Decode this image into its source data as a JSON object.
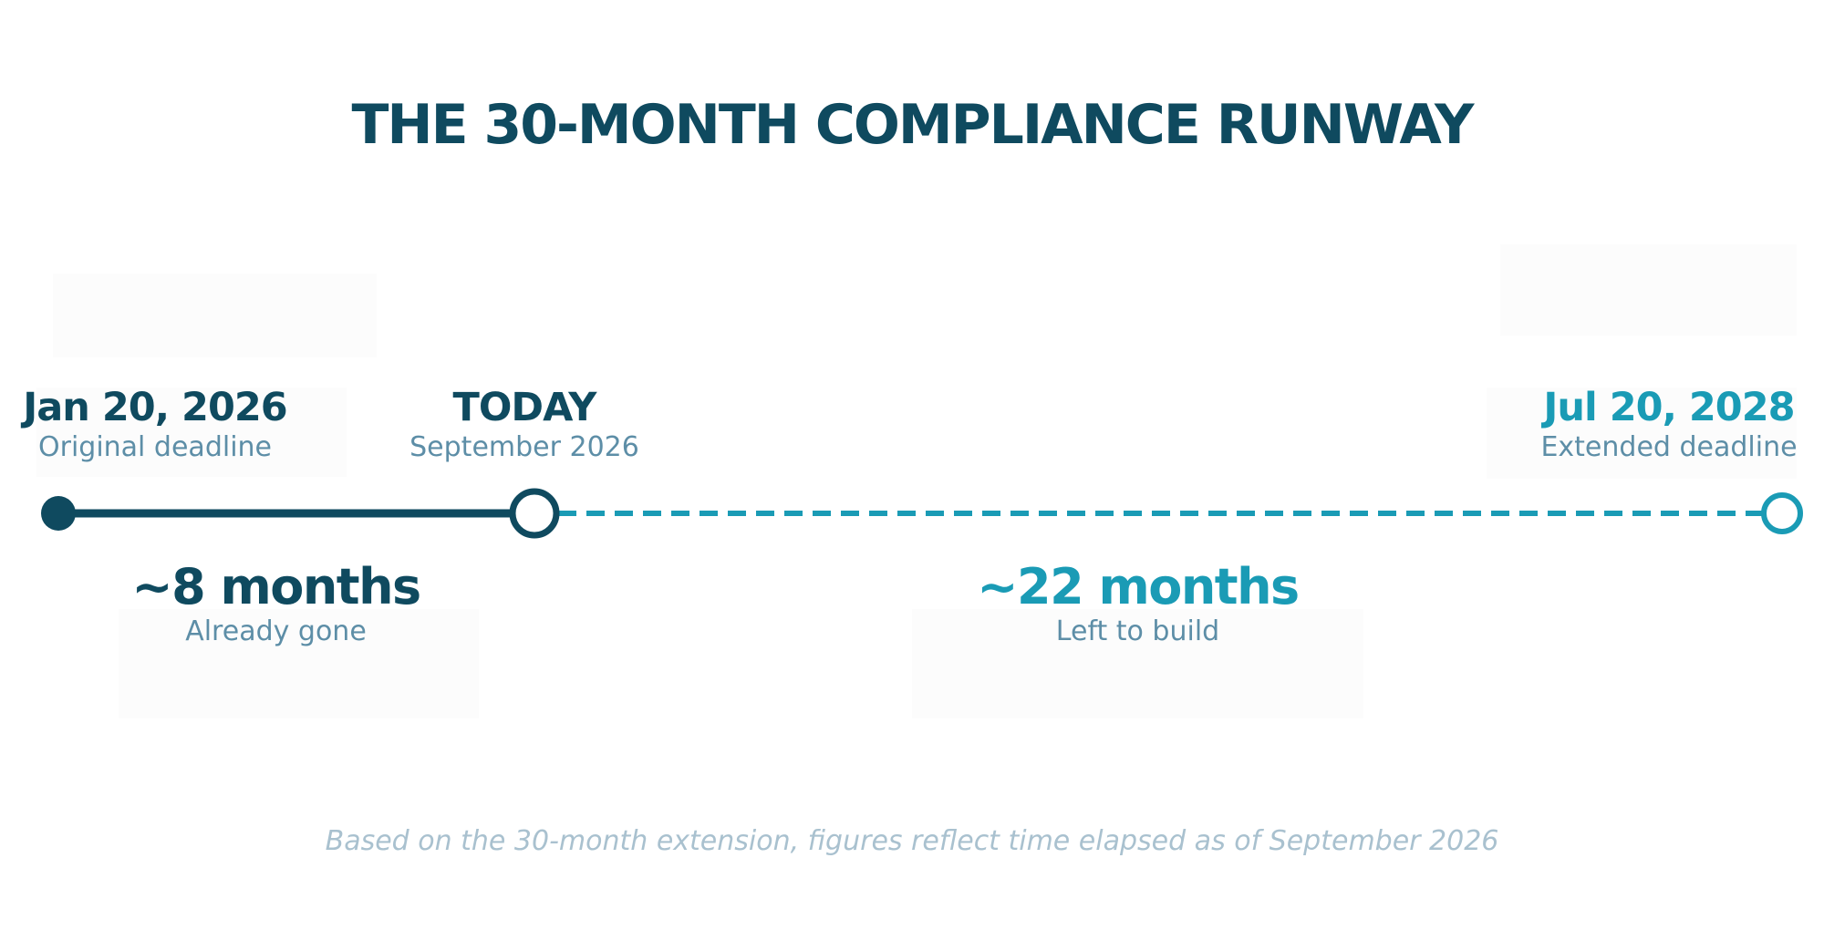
{
  "title": "THE 30-MONTH COMPLIANCE RUNWAY",
  "colors": {
    "dark": "#0f4a5f",
    "teal": "#1a9bb5",
    "muted": "#5d8ea7",
    "footnote": "#a9c1cf"
  },
  "milestones": [
    {
      "date": "Jan 20, 2026",
      "label": "Original deadline",
      "marker": "filled-dot"
    },
    {
      "date": "TODAY",
      "label": "September 2026",
      "marker": "hollow-dot"
    },
    {
      "date": "Jul 20, 2028",
      "label": "Extended deadline",
      "marker": "hollow-dot"
    }
  ],
  "spans": [
    {
      "value": "~8 months",
      "label": "Already gone",
      "style": "solid"
    },
    {
      "value": "~22 months",
      "label": "Left to build",
      "style": "dashed"
    }
  ],
  "footnote": "Based on the 30-month extension, figures reflect time elapsed as of September 2026"
}
